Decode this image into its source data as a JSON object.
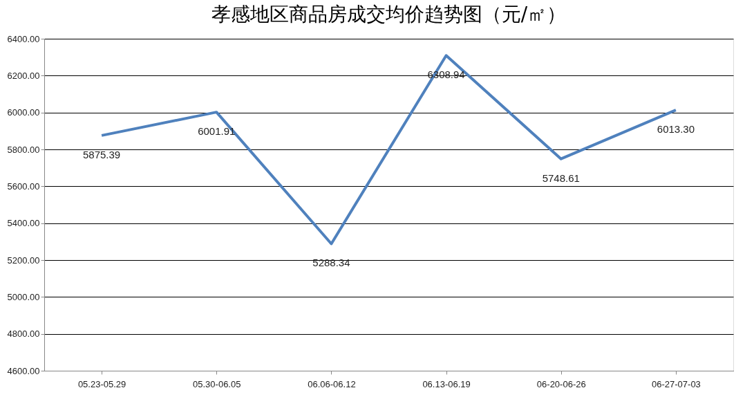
{
  "chart_data": {
    "type": "line",
    "title": "孝感地区商品房成交均价趋势图（元/㎡）",
    "categories": [
      "05.23-05.29",
      "05.30-06.05",
      "06.06-06.12",
      "06.13-06.19",
      "06-20-06-26",
      "06-27-07-03"
    ],
    "series": [
      {
        "color": "#4f81bd",
        "values": [
          5875.39,
          6001.91,
          5288.34,
          6308.94,
          5748.61,
          6013.3
        ],
        "value_labels": [
          "5875.39",
          "6001.91",
          "5288.34",
          "6308.94",
          "5748.61",
          "6013.30"
        ]
      }
    ],
    "ylim": [
      4600,
      6400
    ],
    "yticks": [
      {
        "value": 4600,
        "label": "4600.00"
      },
      {
        "value": 4800,
        "label": "4800.00"
      },
      {
        "value": 5000,
        "label": "5000.00"
      },
      {
        "value": 5200,
        "label": "5200.00"
      },
      {
        "value": 5400,
        "label": "5400.00"
      },
      {
        "value": 5600,
        "label": "5600.00"
      },
      {
        "value": 5800,
        "label": "5800.00"
      },
      {
        "value": 6000,
        "label": "6000.00"
      },
      {
        "value": 6200,
        "label": "6200.00"
      },
      {
        "value": 6400,
        "label": "6400.00"
      }
    ],
    "grid": "y",
    "marker": "none",
    "line_style": "solid",
    "legend": false
  }
}
